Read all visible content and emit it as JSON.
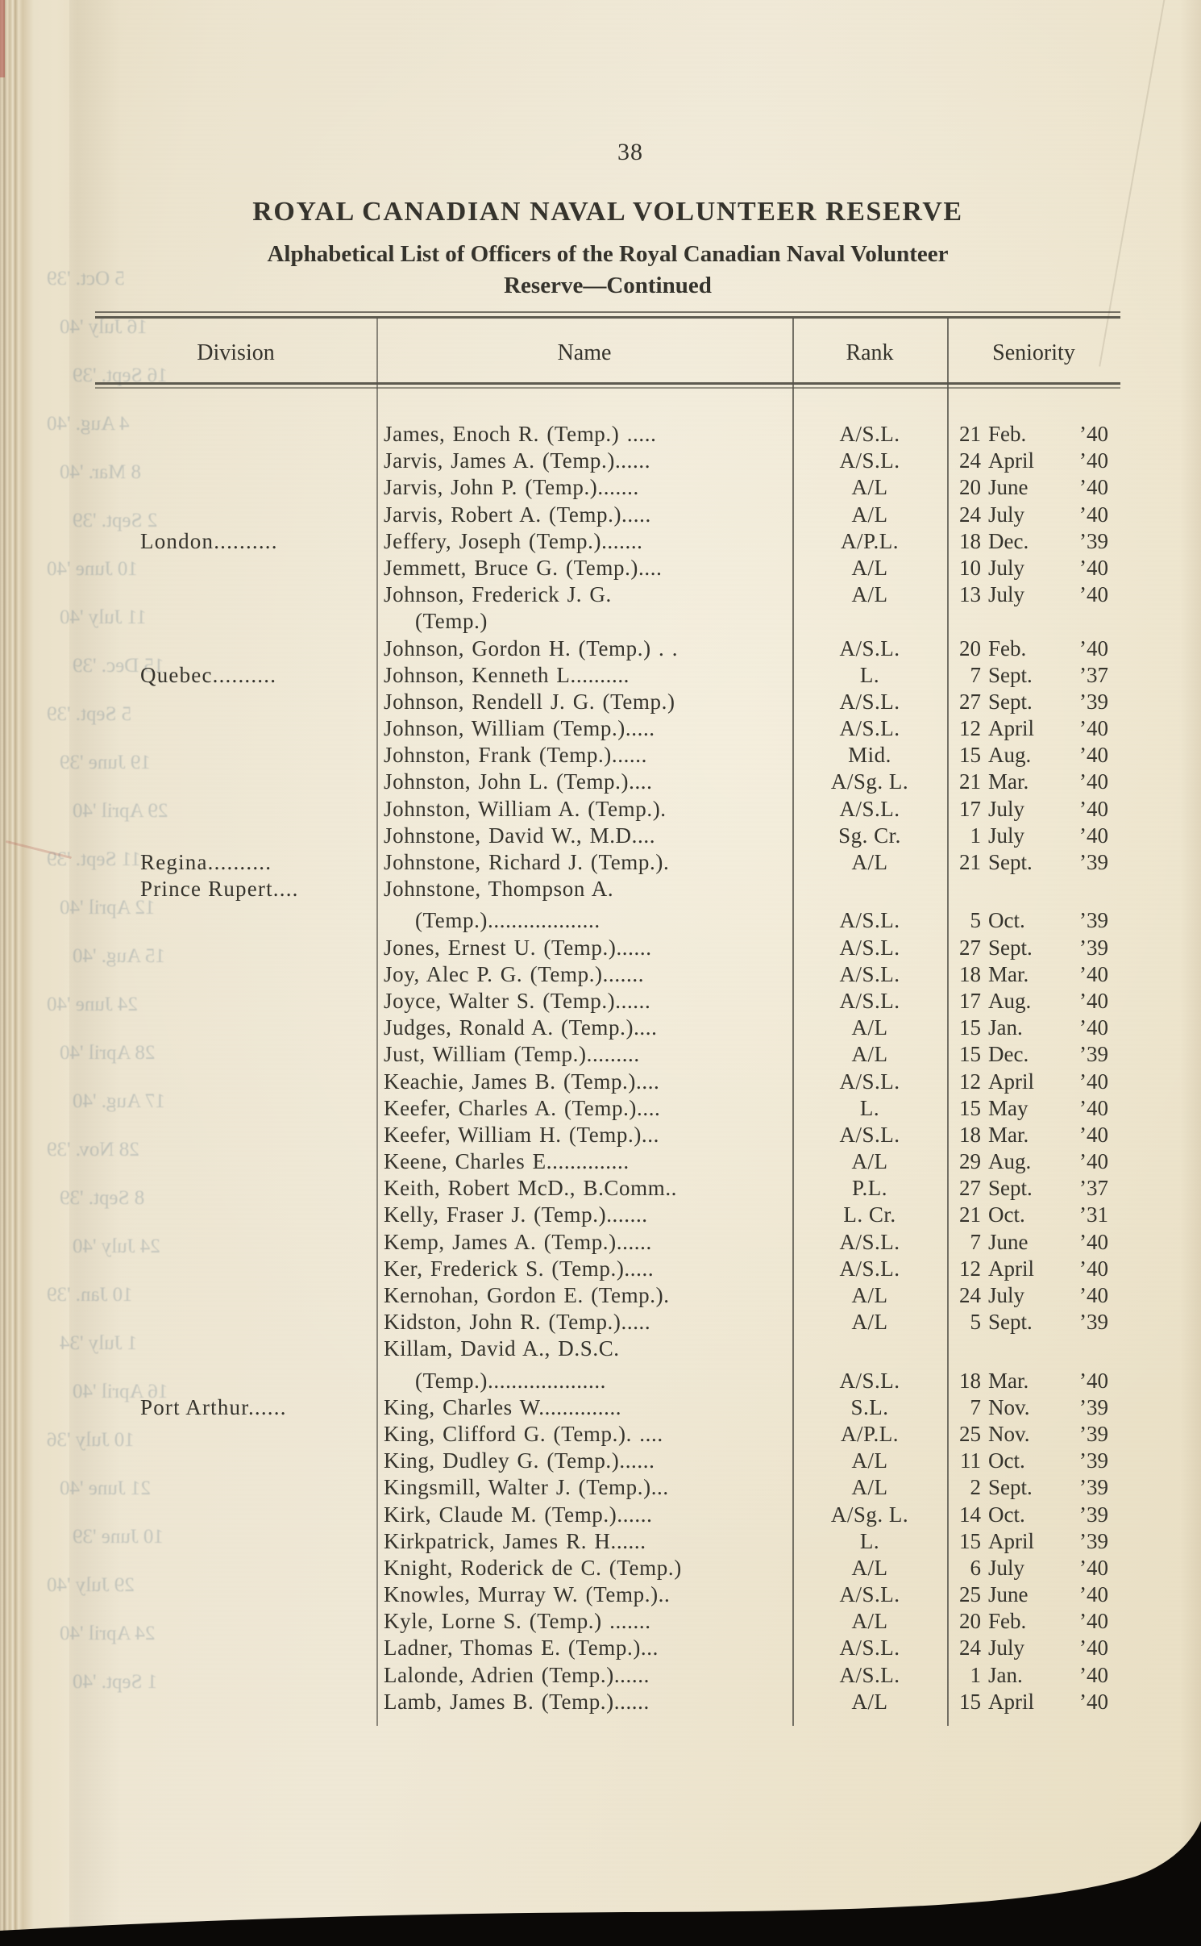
{
  "page": {
    "number": "38",
    "title": "ROYAL CANADIAN NAVAL VOLUNTEER RESERVE",
    "subtitle_line1": "Alphabetical List of Officers of the Royal Canadian Naval Volunteer",
    "subtitle_line2": "Reserve—Continued"
  },
  "colors": {
    "paper": "#ece4cf",
    "ink": "#35332c",
    "rule": "#4d4a40",
    "page_edge_tan": "#d6c7a9",
    "photo_backdrop": "#0b0907",
    "red_edge_mark": "#b0544c",
    "ghost_ink": "#687e8e"
  },
  "table": {
    "headers": [
      "Division",
      "Name",
      "Rank",
      "Seniority"
    ],
    "rows": [
      {
        "div": "",
        "name": "James, Enoch R. (Temp.) .....",
        "rank": "A/S.L.",
        "d": "21",
        "m": "Feb.",
        "y": "’40"
      },
      {
        "div": "",
        "name": "Jarvis, James A. (Temp.)......",
        "rank": "A/S.L.",
        "d": "24",
        "m": "April",
        "y": "’40"
      },
      {
        "div": "",
        "name": "Jarvis, John P. (Temp.).......",
        "rank": "A/L",
        "d": "20",
        "m": "June",
        "y": "’40"
      },
      {
        "div": "",
        "name": "Jarvis, Robert A. (Temp.).....",
        "rank": "A/L",
        "d": "24",
        "m": "July",
        "y": "’40"
      },
      {
        "div": "London..........",
        "name": "Jeffery, Joseph (Temp.).......",
        "rank": "A/P.L.",
        "d": "18",
        "m": "Dec.",
        "y": "’39"
      },
      {
        "div": "",
        "name": "Jemmett, Bruce G. (Temp.)....",
        "rank": "A/L",
        "d": "10",
        "m": "July",
        "y": "’40"
      },
      {
        "div": "",
        "name": "Johnson, Frederick J. G.",
        "rank": "A/L",
        "d": "13",
        "m": "July",
        "y": "’40"
      },
      {
        "div": "",
        "name": "(Temp.)",
        "indent": true
      },
      {
        "div": "",
        "name": "Johnson, Gordon H. (Temp.) . .",
        "rank": "A/S.L.",
        "d": "20",
        "m": "Feb.",
        "y": "’40"
      },
      {
        "div": "Quebec..........",
        "name": "Johnson, Kenneth L..........",
        "rank": "L.",
        "d": "7",
        "m": "Sept.",
        "y": "’37"
      },
      {
        "div": "",
        "name": "Johnson, Rendell J. G. (Temp.)",
        "rank": "A/S.L.",
        "d": "27",
        "m": "Sept.",
        "y": "’39"
      },
      {
        "div": "",
        "name": "Johnson, William (Temp.).....",
        "rank": "A/S.L.",
        "d": "12",
        "m": "April",
        "y": "’40"
      },
      {
        "div": "",
        "name": "Johnston, Frank (Temp.)......",
        "rank": "Mid.",
        "d": "15",
        "m": "Aug.",
        "y": "’40"
      },
      {
        "div": "",
        "name": "Johnston, John L. (Temp.)....",
        "rank": "A/Sg. L.",
        "d": "21",
        "m": "Mar.",
        "y": "’40"
      },
      {
        "div": "",
        "name": "Johnston, William A. (Temp.).",
        "rank": "A/S.L.",
        "d": "17",
        "m": "July",
        "y": "’40"
      },
      {
        "div": "",
        "name": "Johnstone, David W., M.D....",
        "rank": "Sg. Cr.",
        "d": "1",
        "m": "July",
        "y": "’40"
      },
      {
        "div": "Regina..........",
        "name": "Johnstone, Richard J. (Temp.).",
        "rank": "A/L",
        "d": "21",
        "m": "Sept.",
        "y": "’39"
      },
      {
        "div": "Prince Rupert....",
        "name": "Johnstone, Thompson A."
      },
      {
        "div": "",
        "name": "(Temp.)...................",
        "indent": true,
        "extra": 6,
        "rank": "A/S.L.",
        "d": "5",
        "m": "Oct.",
        "y": "’39"
      },
      {
        "div": "",
        "name": "Jones, Ernest U. (Temp.)......",
        "rank": "A/S.L.",
        "d": "27",
        "m": "Sept.",
        "y": "’39"
      },
      {
        "div": "",
        "name": "Joy, Alec P. G. (Temp.).......",
        "rank": "A/S.L.",
        "d": "18",
        "m": "Mar.",
        "y": "’40"
      },
      {
        "div": "",
        "name": "Joyce, Walter S. (Temp.)......",
        "rank": "A/S.L.",
        "d": "17",
        "m": "Aug.",
        "y": "’40"
      },
      {
        "div": "",
        "name": "Judges, Ronald A. (Temp.)....",
        "rank": "A/L",
        "d": "15",
        "m": "Jan.",
        "y": "’40"
      },
      {
        "div": "",
        "name": "Just, William (Temp.).........",
        "rank": "A/L",
        "d": "15",
        "m": "Dec.",
        "y": "’39"
      },
      {
        "div": "",
        "name": "Keachie, James B. (Temp.)....",
        "rank": "A/S.L.",
        "d": "12",
        "m": "April",
        "y": "’40"
      },
      {
        "div": "",
        "name": "Keefer, Charles A. (Temp.)....",
        "rank": "L.",
        "d": "15",
        "m": "May",
        "y": "’40"
      },
      {
        "div": "",
        "name": "Keefer, William H. (Temp.)...",
        "rank": "A/S.L.",
        "d": "18",
        "m": "Mar.",
        "y": "’40"
      },
      {
        "div": "",
        "name": "Keene, Charles E..............",
        "rank": "A/L",
        "d": "29",
        "m": "Aug.",
        "y": "’40"
      },
      {
        "div": "",
        "name": "Keith, Robert McD., B.Comm..",
        "rank": "P.L.",
        "d": "27",
        "m": "Sept.",
        "y": "’37"
      },
      {
        "div": "",
        "name": "Kelly, Fraser J. (Temp.).......",
        "rank": "L. Cr.",
        "d": "21",
        "m": "Oct.",
        "y": "’31"
      },
      {
        "div": "",
        "name": "Kemp, James A. (Temp.)......",
        "rank": "A/S.L.",
        "d": "7",
        "m": "June",
        "y": "’40"
      },
      {
        "div": "",
        "name": "Ker, Frederick S. (Temp.).....",
        "rank": "A/S.L.",
        "d": "12",
        "m": "April",
        "y": "’40"
      },
      {
        "div": "",
        "name": "Kernohan, Gordon E. (Temp.).",
        "rank": "A/L",
        "d": "24",
        "m": "July",
        "y": "’40"
      },
      {
        "div": "",
        "name": "Kidston, John R. (Temp.).....",
        "rank": "A/L",
        "d": "5",
        "m": "Sept.",
        "y": "’39"
      },
      {
        "div": "",
        "name": "Killam, David A., D.S.C."
      },
      {
        "div": "",
        "name": "(Temp.)....................",
        "indent": true,
        "extra": 6,
        "rank": "A/S.L.",
        "d": "18",
        "m": "Mar.",
        "y": "’40"
      },
      {
        "div": "Port Arthur......",
        "name": "King, Charles W..............",
        "rank": "S.L.",
        "d": "7",
        "m": "Nov.",
        "y": "’39"
      },
      {
        "div": "",
        "name": "King, Clifford G. (Temp.). ....",
        "rank": "A/P.L.",
        "d": "25",
        "m": "Nov.",
        "y": "’39"
      },
      {
        "div": "",
        "name": "King, Dudley G. (Temp.)......",
        "rank": "A/L",
        "d": "11",
        "m": "Oct.",
        "y": "’39"
      },
      {
        "div": "",
        "name": "Kingsmill, Walter J. (Temp.)...",
        "rank": "A/L",
        "d": "2",
        "m": "Sept.",
        "y": "’39"
      },
      {
        "div": "",
        "name": "Kirk, Claude M. (Temp.)......",
        "rank": "A/Sg. L.",
        "d": "14",
        "m": "Oct.",
        "y": "’39"
      },
      {
        "div": "",
        "name": "Kirkpatrick, James R. H......",
        "rank": "L.",
        "d": "15",
        "m": "April",
        "y": "’39"
      },
      {
        "div": "",
        "name": "Knight, Roderick de C. (Temp.)",
        "rank": "A/L",
        "d": "6",
        "m": "July",
        "y": "’40"
      },
      {
        "div": "",
        "name": "Knowles, Murray W. (Temp.)..",
        "rank": "A/S.L.",
        "d": "25",
        "m": "June",
        "y": "’40"
      },
      {
        "div": "",
        "name": "Kyle, Lorne S. (Temp.) .......",
        "rank": "A/L",
        "d": "20",
        "m": "Feb.",
        "y": "’40"
      },
      {
        "div": "",
        "name": "Ladner, Thomas E. (Temp.)...",
        "rank": "A/S.L.",
        "d": "24",
        "m": "July",
        "y": "’40"
      },
      {
        "div": "",
        "name": "Lalonde, Adrien (Temp.)......",
        "rank": "A/S.L.",
        "d": "1",
        "m": "Jan.",
        "y": "’40"
      },
      {
        "div": "",
        "name": "Lamb, James B. (Temp.)......",
        "rank": "A/L",
        "d": "15",
        "m": "April",
        "y": "’40"
      }
    ]
  },
  "ghost_text": {
    "note": "faint mirrored bleed-through from reverse page",
    "dates": [
      "5 Oct. '39",
      "16 July '40",
      "16 Sept. '39",
      "4 Aug. '40",
      "8 Mar. '40",
      "2 Sept. '39",
      "10 June '40",
      "11 July '40",
      "15 Dec. '39",
      "5 Sept. '39",
      "19 June '39",
      "29 April '40",
      "11 Sept. '39",
      "12 April '40",
      "15 Aug. '40",
      "24 June '40",
      "28 April '40",
      "17 Aug. '40",
      "28 Nov. '39",
      "8 Sept. '39",
      "24 July '40",
      "10 Jan. '39",
      "1 July '34",
      "16 April '40",
      "10 July '36",
      "21 June '40",
      "10 June '39",
      "29 July '40",
      "24 April '40",
      "1 Sept. '40"
    ]
  }
}
